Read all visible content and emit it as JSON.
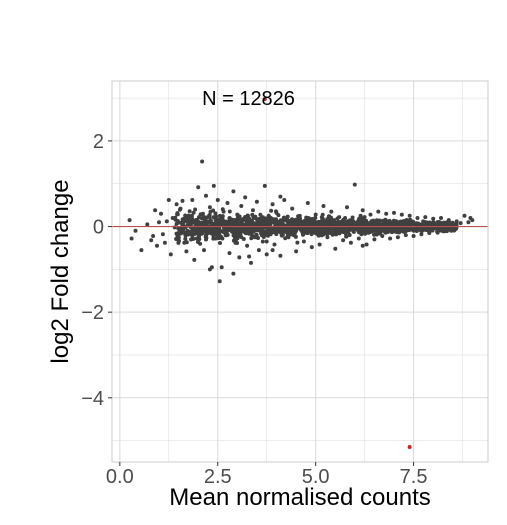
{
  "chart_data": {
    "type": "scatter",
    "title": "",
    "xlabel": "Mean normalised counts",
    "ylabel": "log2 Fold change",
    "xlim": [
      -0.2,
      9.4
    ],
    "ylim": [
      -5.5,
      3.4
    ],
    "x_ticks": [
      0.0,
      2.5,
      5.0,
      7.5
    ],
    "x_tick_labels": [
      "0.0",
      "2.5",
      "5.0",
      "7.5"
    ],
    "y_ticks": [
      -4,
      -2,
      0,
      2
    ],
    "y_tick_labels": [
      "−4",
      "−2",
      "0",
      "2"
    ],
    "grid": true,
    "reference_line": {
      "y": 0,
      "color": "#c0504d"
    },
    "annotation": {
      "text": "N = 12826",
      "x": 2.1,
      "y": 3.0
    },
    "colors": {
      "points": "#404040",
      "highlight": "#cc2222",
      "grid": "#d9d9d9",
      "panel_border": "#cccccc"
    },
    "summary": {
      "n_points": 12826
    },
    "highlighted_points": [
      {
        "x": 3.7,
        "y": 2.98
      },
      {
        "x": 7.4,
        "y": -5.15
      }
    ],
    "points": [
      [
        0.25,
        0.15
      ],
      [
        0.3,
        -0.28
      ],
      [
        0.4,
        -0.1
      ],
      [
        0.55,
        -0.55
      ],
      [
        0.7,
        0.05
      ],
      [
        0.8,
        -0.32
      ],
      [
        0.85,
        -0.22
      ],
      [
        0.9,
        0.38
      ],
      [
        0.95,
        -0.45
      ],
      [
        1.0,
        0.1
      ],
      [
        1.05,
        0.3
      ],
      [
        1.1,
        -0.18
      ],
      [
        1.15,
        -0.38
      ],
      [
        1.2,
        0.12
      ],
      [
        1.25,
        0.62
      ],
      [
        1.3,
        -0.65
      ],
      [
        1.35,
        0.2
      ],
      [
        1.4,
        -0.02
      ],
      [
        1.45,
        0.52
      ],
      [
        1.5,
        -0.32
      ],
      [
        1.55,
        0.42
      ],
      [
        1.6,
        -0.05
      ],
      [
        1.65,
        0.18
      ],
      [
        1.7,
        -0.58
      ],
      [
        1.75,
        0.25
      ],
      [
        1.8,
        -0.12
      ],
      [
        1.85,
        0.62
      ],
      [
        1.9,
        -0.78
      ],
      [
        1.95,
        0.15
      ],
      [
        2.0,
        0.92
      ],
      [
        2.05,
        -0.4
      ],
      [
        2.1,
        1.52
      ],
      [
        2.12,
        0.3
      ],
      [
        2.15,
        -0.55
      ],
      [
        2.2,
        0.72
      ],
      [
        2.25,
        -0.15
      ],
      [
        2.3,
        0.45
      ],
      [
        2.35,
        -0.95
      ],
      [
        2.4,
        0.22
      ],
      [
        2.45,
        -0.28
      ],
      [
        2.5,
        0.62
      ],
      [
        2.55,
        -1.28
      ],
      [
        2.6,
        -0.95
      ],
      [
        2.65,
        0.35
      ],
      [
        2.7,
        -0.2
      ],
      [
        2.75,
        0.55
      ],
      [
        2.8,
        -0.62
      ],
      [
        2.85,
        0.1
      ],
      [
        2.9,
        0.82
      ],
      [
        2.95,
        -0.38
      ],
      [
        3.0,
        0.28
      ],
      [
        3.05,
        -0.72
      ],
      [
        3.1,
        0.48
      ],
      [
        3.15,
        -0.1
      ],
      [
        3.2,
        0.68
      ],
      [
        3.25,
        -0.45
      ],
      [
        3.3,
        0.18
      ],
      [
        3.35,
        -0.85
      ],
      [
        3.4,
        0.38
      ],
      [
        3.45,
        -0.25
      ],
      [
        3.5,
        0.58
      ],
      [
        3.55,
        -0.55
      ],
      [
        3.6,
        0.15
      ],
      [
        3.65,
        -0.35
      ],
      [
        3.7,
        0.95
      ],
      [
        3.75,
        -0.65
      ],
      [
        3.8,
        0.25
      ],
      [
        3.85,
        -0.18
      ],
      [
        3.9,
        0.52
      ],
      [
        3.95,
        -0.42
      ],
      [
        4.0,
        0.32
      ],
      [
        4.1,
        -0.68
      ],
      [
        4.2,
        0.62
      ],
      [
        4.3,
        -0.22
      ],
      [
        4.4,
        0.42
      ],
      [
        4.5,
        -0.58
      ],
      [
        4.6,
        0.18
      ],
      [
        4.7,
        -0.35
      ],
      [
        4.8,
        0.55
      ],
      [
        4.9,
        -0.48
      ],
      [
        5.0,
        0.28
      ],
      [
        5.1,
        -0.42
      ],
      [
        5.2,
        0.48
      ],
      [
        5.3,
        -0.25
      ],
      [
        5.4,
        0.35
      ],
      [
        5.5,
        -0.52
      ],
      [
        5.6,
        0.22
      ],
      [
        5.7,
        -0.32
      ],
      [
        5.8,
        0.45
      ],
      [
        5.9,
        -0.38
      ],
      [
        6.0,
        0.98
      ],
      [
        6.1,
        -0.28
      ],
      [
        6.2,
        0.38
      ],
      [
        6.3,
        -0.42
      ],
      [
        6.4,
        0.28
      ],
      [
        6.5,
        -0.3
      ],
      [
        6.6,
        0.35
      ],
      [
        6.7,
        -0.22
      ],
      [
        6.8,
        0.3
      ],
      [
        6.9,
        -0.28
      ],
      [
        7.0,
        0.32
      ],
      [
        7.1,
        -0.25
      ],
      [
        7.2,
        0.28
      ],
      [
        7.3,
        -0.2
      ],
      [
        7.4,
        0.25
      ],
      [
        7.5,
        -0.22
      ],
      [
        7.6,
        0.2
      ],
      [
        7.7,
        -0.18
      ],
      [
        7.8,
        0.22
      ],
      [
        7.9,
        -0.15
      ],
      [
        8.0,
        0.18
      ],
      [
        8.1,
        -0.12
      ],
      [
        8.2,
        0.2
      ],
      [
        8.3,
        -0.1
      ],
      [
        8.4,
        0.15
      ],
      [
        8.5,
        -0.08
      ],
      [
        8.6,
        0.12
      ],
      [
        8.7,
        0.08
      ],
      [
        8.8,
        0.25
      ],
      [
        8.9,
        0.1
      ],
      [
        8.95,
        0.2
      ],
      [
        9.0,
        0.15
      ],
      [
        2.3,
        -1.0
      ],
      [
        2.9,
        -1.1
      ],
      [
        3.3,
        -0.7
      ],
      [
        4.1,
        0.7
      ],
      [
        3.9,
        -0.55
      ],
      [
        2.4,
        0.95
      ],
      [
        6.2,
        -0.45
      ],
      [
        1.6,
        0.6
      ]
    ]
  }
}
